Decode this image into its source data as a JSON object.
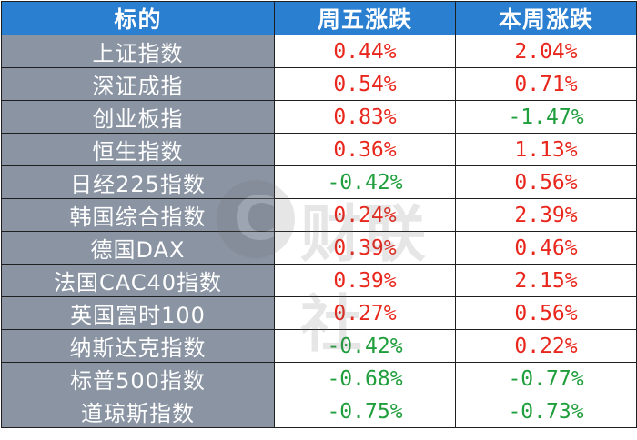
{
  "table": {
    "headers": [
      "标的",
      "周五涨跌",
      "本周涨跌"
    ],
    "rows": [
      {
        "name": "上证指数",
        "friday": "0.44%",
        "friday_dir": "up",
        "week": "2.04%",
        "week_dir": "up"
      },
      {
        "name": "深证成指",
        "friday": "0.54%",
        "friday_dir": "up",
        "week": "0.71%",
        "week_dir": "up"
      },
      {
        "name": "创业板指",
        "friday": "0.83%",
        "friday_dir": "up",
        "week": "-1.47%",
        "week_dir": "down"
      },
      {
        "name": "恒生指数",
        "friday": "0.36%",
        "friday_dir": "up",
        "week": "1.13%",
        "week_dir": "up"
      },
      {
        "name": "日经225指数",
        "friday": "-0.42%",
        "friday_dir": "down",
        "week": "0.56%",
        "week_dir": "up"
      },
      {
        "name": "韩国综合指数",
        "friday": "0.24%",
        "friday_dir": "up",
        "week": "2.39%",
        "week_dir": "up"
      },
      {
        "name": "德国DAX",
        "friday": "0.39%",
        "friday_dir": "up",
        "week": "0.46%",
        "week_dir": "up"
      },
      {
        "name": "法国CAC40指数",
        "friday": "0.39%",
        "friday_dir": "up",
        "week": "2.15%",
        "week_dir": "up"
      },
      {
        "name": "英国富时100",
        "friday": "0.27%",
        "friday_dir": "up",
        "week": "0.56%",
        "week_dir": "up"
      },
      {
        "name": "纳斯达克指数",
        "friday": "-0.42%",
        "friday_dir": "down",
        "week": "0.22%",
        "week_dir": "up"
      },
      {
        "name": "标普500指数",
        "friday": "-0.68%",
        "friday_dir": "down",
        "week": "-0.77%",
        "week_dir": "down"
      },
      {
        "name": "道琼斯指数",
        "friday": "-0.75%",
        "friday_dir": "down",
        "week": "-0.73%",
        "week_dir": "down"
      }
    ]
  },
  "colors": {
    "header_bg": "#2a7fd0",
    "name_bg": "#8a94a3",
    "up": "#e8261c",
    "down": "#1f9e3c"
  },
  "watermark": {
    "logo_letter": "C",
    "text": "财联社"
  }
}
